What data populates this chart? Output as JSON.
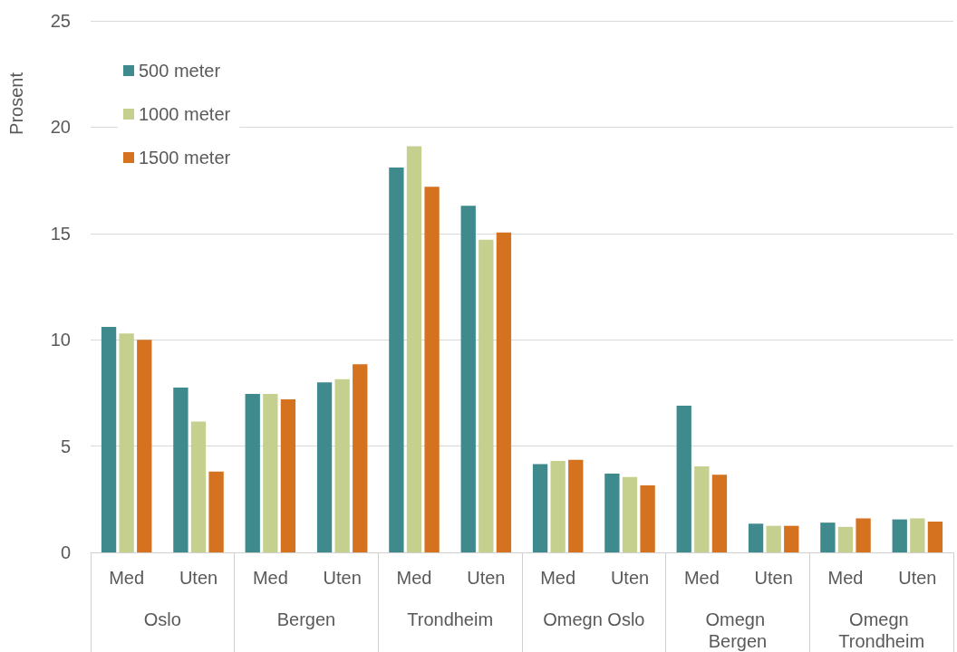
{
  "chart_data": {
    "type": "bar",
    "ylabel": "Prosent",
    "categories": [
      "Med",
      "Uten",
      "Med",
      "Uten",
      "Med",
      "Uten",
      "Med",
      "Uten",
      "Med",
      "Uten",
      "Med",
      "Uten"
    ],
    "annotations": [
      "Oslo",
      "Bergen",
      "Trondheim",
      "Omegn Oslo",
      "Omegn Bergen",
      "Omegn Trondheim"
    ],
    "series": [
      {
        "name": "500 meter",
        "color": "#3f8a8c",
        "values": [
          10.6,
          7.75,
          7.45,
          8.0,
          18.1,
          16.3,
          4.15,
          3.7,
          6.9,
          1.35,
          1.4,
          1.55
        ]
      },
      {
        "name": "1000 meter",
        "color": "#c5d08f",
        "values": [
          10.3,
          6.15,
          7.45,
          8.15,
          19.1,
          14.7,
          4.3,
          3.55,
          4.05,
          1.25,
          1.2,
          1.6
        ]
      },
      {
        "name": "1500 meter",
        "color": "#d4721f",
        "values": [
          10.0,
          3.8,
          7.2,
          8.85,
          17.2,
          15.05,
          4.35,
          3.15,
          3.65,
          1.25,
          1.6,
          1.45
        ]
      }
    ],
    "ylim": [
      0,
      25
    ],
    "yticks": [
      0,
      5,
      10,
      15,
      20,
      25
    ],
    "grid": "y",
    "legend": "top left"
  }
}
